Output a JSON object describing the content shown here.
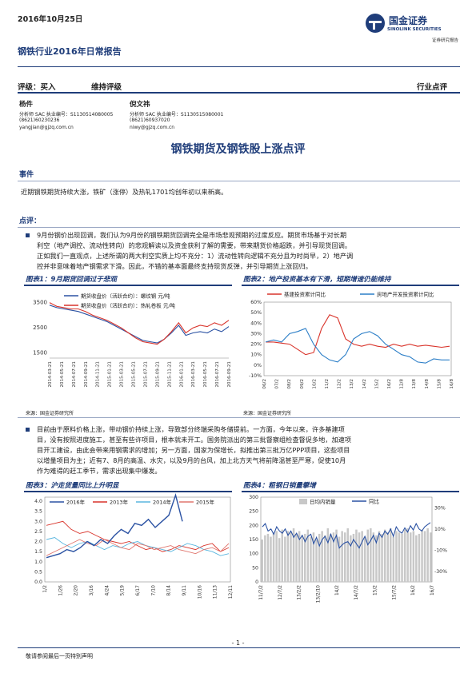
{
  "header": {
    "date": "2016年10月25日",
    "report_title": "钢铁行业2016年日常报告",
    "logo_name": "国金证券",
    "logo_en": "SINOLINK SECURITIES",
    "logo_sub": "证券研究报告",
    "logo_icon": "sinolink-logo-icon"
  },
  "rating": {
    "label": "评级：买入",
    "sub": "维持评级",
    "type": "行业点评"
  },
  "analysts": [
    {
      "name": "杨件",
      "cert": "分析师 SAC 执业编号：S1130514080005",
      "phone": "(8621)60230236",
      "email": "yangjian@gjzq.com.cn"
    },
    {
      "name": "倪文祎",
      "cert": "分析师 SAC 执业编号：S1130515080001",
      "phone": "(8621)60937020",
      "email": "niwy@gjzq.com.cn"
    }
  ],
  "main_title": "钢铁期货及钢铁股上涨点评",
  "event": {
    "heading": "事件",
    "text": "近期钢铁期货持续大涨，铁矿（涨停）及热轧1701均创年初以来新高。"
  },
  "comment": {
    "heading": "点评：",
    "p1": [
      "9月份钢价出现回调，我们认为9月份的钢铁期货回调完全是市场悲观预期的过度反应。期货市场基于对长期",
      "利空（地产调控、流动性转向）的悲观解读以及资金获利了解的需要，带来期货价格超跌，并引导现货回调。",
      "正如我们一直观点，上述所谓的两大利空实质上均不充分：1）流动性转向逻辑不充分且为时尚早，2）地产调",
      "控并非意味着地产钢需求下滑。因此，不错的基本面最终支持现货反弹，并引导期货上涨回归。"
    ],
    "p2": [
      "目前由于原料价格上涨，带动钢价持续上涨，导致部分终端采购冬储提前。一方面，今年以来，许多基建项",
      "目，没有按照进度施工，甚至有些许项目，根本就未开工。国务院派出的第三批督察组检查督促多地，加速项",
      "目开工建设，由此会带来用钢需求的增加；另一方面，国家为保增长，拟推出第三批万亿PPP项目，这些项目",
      "以增量项目为主；近有7、8月的高温、水灾，以及9月的台风，加上北方天气将前降温甚至严寒，促使10月",
      "作为难得的赶工季节，需求出现集中爆发。"
    ]
  },
  "source_text": "来源：国金证券研究所",
  "footer": {
    "page": "- 1 -",
    "disclaimer": "敬请参阅最后一页特别声明"
  },
  "chart_data": [
    {
      "type": "line",
      "title": "图表1：9月期货回调过于悲观",
      "series": [
        {
          "name": "期货收盘价（活跃合约）：螺纹钢  元/吨",
          "color": "#2b52a3"
        },
        {
          "name": "期货收盘价（活跃合约）：热轧卷板  元/吨",
          "color": "#d9342b"
        }
      ],
      "yticks": [
        "3500",
        "2500",
        "1500"
      ],
      "ylim": [
        1300,
        3900
      ],
      "xticks": [
        "2014-03-21",
        "2014-05-21",
        "2014-07-21",
        "2014-09-21",
        "2014-11-21",
        "2015-01-21",
        "2015-03-21",
        "2015-05-21",
        "2015-07-21",
        "2015-09-21",
        "2015-11-21",
        "2016-01-21",
        "2016-03-21",
        "2016-05-21",
        "2016-07-21",
        "2016-09-21"
      ],
      "values_rebar": [
        3400,
        3300,
        3250,
        3200,
        3150,
        3050,
        2950,
        2850,
        2750,
        2600,
        2450,
        2300,
        2150,
        2000,
        1950,
        1900,
        2050,
        2300,
        2600,
        2200,
        2300,
        2350,
        2300,
        2450,
        2350,
        2550
      ],
      "values_hrc": [
        3500,
        3350,
        3300,
        3250,
        3250,
        3150,
        3000,
        2900,
        2800,
        2650,
        2500,
        2300,
        2100,
        1950,
        1900,
        1850,
        2050,
        2350,
        2700,
        2300,
        2500,
        2600,
        2550,
        2700,
        2600,
        2800
      ]
    },
    {
      "type": "line",
      "title": "图表2：地产投资基本有下滑，短期增速仍能维持",
      "series": [
        {
          "name": "基建投资累计同比",
          "color": "#d9342b"
        },
        {
          "name": "房地产开发投资累计同比",
          "color": "#2b7ec7"
        }
      ],
      "yticks": [
        "60%",
        "50%",
        "40%",
        "30%",
        "20%",
        "10%",
        "0%",
        "-10%"
      ],
      "ylim": [
        -10,
        60
      ],
      "xticks": [
        "06/2",
        "07/2",
        "08/2",
        "09/2",
        "10/2",
        "11/2",
        "12/2",
        "13/2",
        "14/2",
        "15/2",
        "16/2",
        "12/8",
        "13/8",
        "14/8",
        "15/8",
        "16/8"
      ],
      "infra": [
        22,
        22,
        21,
        20,
        15,
        10,
        12,
        35,
        48,
        45,
        25,
        20,
        18,
        20,
        18,
        17,
        20,
        18,
        20,
        18,
        19,
        18,
        17,
        18
      ],
      "realestate": [
        22,
        24,
        22,
        30,
        32,
        35,
        20,
        10,
        5,
        3,
        10,
        25,
        30,
        32,
        28,
        20,
        15,
        10,
        8,
        3,
        2,
        6,
        5,
        5
      ]
    },
    {
      "type": "line",
      "title": "图表3：沪走货量同比上升明显",
      "series": [
        {
          "name": "2016年",
          "color": "#2b52a3"
        },
        {
          "name": "2013年",
          "color": "#d9342b"
        },
        {
          "name": "2014年",
          "color": "#5ab6df"
        },
        {
          "name": "2015年",
          "color": "#e0766e"
        }
      ],
      "yticks": [
        "4.0",
        "3.5",
        "3.0",
        "2.5",
        "2.0",
        "1.5",
        "1.0",
        "0.5",
        "0.0"
      ],
      "ylim": [
        0,
        4.2
      ],
      "xticks": [
        "1/2",
        "1/26",
        "2/20",
        "3/16",
        "4/24",
        "5/19",
        "6/17",
        "7/10",
        "8/14",
        "9/11",
        "10/16",
        "11/13",
        "12/11"
      ],
      "s2016": [
        1.2,
        1.3,
        1.4,
        1.6,
        1.5,
        1.7,
        2.0,
        1.8,
        2.1,
        1.9,
        2.3,
        2.6,
        2.4,
        2.9,
        2.8,
        3.1,
        2.7,
        3.0,
        3.3,
        4.3,
        3.0
      ],
      "s2013": [
        2.8,
        2.9,
        3.0,
        2.6,
        2.4,
        2.5,
        2.3,
        2.1,
        2.0,
        1.9,
        2.0,
        1.8,
        1.6,
        1.7,
        1.5,
        1.6,
        1.8,
        1.7,
        1.6,
        1.8,
        1.9,
        1.5,
        1.7
      ],
      "s2014": [
        2.1,
        2.2,
        1.9,
        1.7,
        1.9,
        2.0,
        1.8,
        1.6,
        1.8,
        1.7,
        1.9,
        2.0,
        1.8,
        1.7,
        1.6,
        1.5,
        1.7,
        1.9,
        1.8,
        1.6,
        1.5,
        1.3,
        1.4
      ],
      "s2015": [
        1.3,
        1.5,
        1.7,
        1.9,
        2.1,
        1.9,
        1.8,
        2.1,
        1.9,
        1.7,
        1.6,
        1.9,
        1.8,
        1.6,
        1.7,
        1.8,
        1.6,
        1.5,
        1.4,
        1.6,
        1.7,
        1.5,
        1.9
      ]
    },
    {
      "type": "bar",
      "title": "图表4：粗钢日销量攀增",
      "series": [
        {
          "name": "日均内销量",
          "color": "#c8c8c8"
        },
        {
          "name": "同比",
          "color": "#2b52a3"
        }
      ],
      "yticks_left": [
        "300",
        "250",
        "200",
        "150",
        "100",
        "50",
        "0"
      ],
      "yticks_right": [
        "30%",
        "10%",
        "-10%",
        "-30%"
      ],
      "ylim_left": [
        0,
        300
      ],
      "ylim_right": [
        -40,
        40
      ],
      "xticks": [
        "11/7/2",
        "12/7/2",
        "13/2/2",
        "13/2/10",
        "14/2",
        "14/7/2",
        "15/2",
        "15/7/2",
        "16/2",
        "16/7"
      ],
      "bars": [
        150,
        165,
        170,
        160,
        175,
        180,
        155,
        185,
        160,
        180,
        175,
        190,
        170,
        180,
        165,
        170,
        185,
        160,
        175,
        150,
        170,
        180,
        165,
        190,
        170,
        175,
        185,
        160,
        180,
        175,
        190,
        165,
        170,
        185,
        175,
        180,
        160,
        185,
        190,
        175,
        165,
        180,
        170,
        185,
        175,
        190,
        160,
        180,
        175,
        170,
        185,
        190,
        175,
        180,
        165,
        170,
        185,
        180,
        190,
        175
      ],
      "yoy": [
        12,
        15,
        8,
        10,
        5,
        12,
        8,
        6,
        10,
        4,
        8,
        2,
        6,
        0,
        4,
        -2,
        3,
        5,
        -4,
        2,
        -6,
        0,
        3,
        -3,
        5,
        -2,
        4,
        -8,
        -5,
        -3,
        -2,
        -6,
        0,
        -4,
        -8,
        -2,
        3,
        -5,
        -1,
        4,
        -3,
        6,
        2,
        8,
        5,
        10,
        3,
        12,
        8,
        6,
        11,
        7,
        13,
        9,
        15,
        10,
        8,
        12,
        14,
        16
      ]
    }
  ]
}
